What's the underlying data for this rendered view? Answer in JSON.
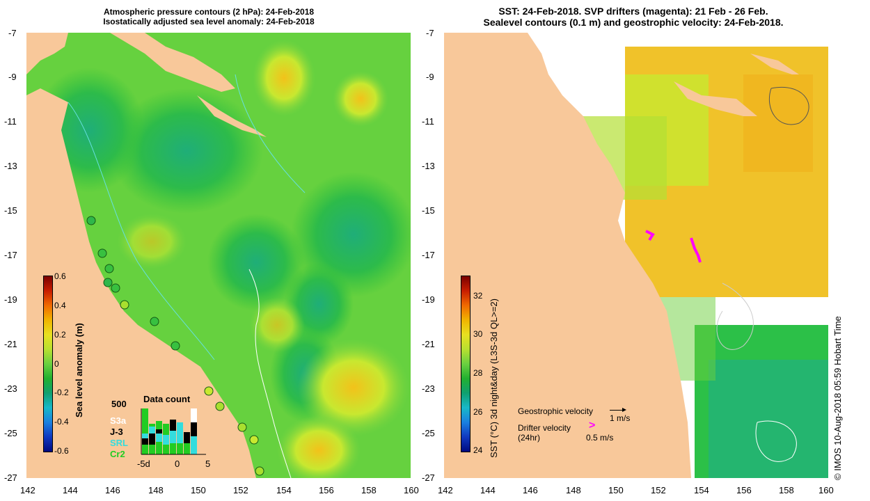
{
  "left_panel": {
    "title_line1": "Atmospheric pressure contours (2 hPa): 24-Feb-2018",
    "title_line2": "Isostatically adjusted sea level anomaly: 24-Feb-2018",
    "y_ticks": [
      "-7",
      "-9",
      "-11",
      "-13",
      "-15",
      "-17",
      "-19",
      "-21",
      "-23",
      "-25",
      "-27"
    ],
    "x_ticks": [
      "142",
      "144",
      "146",
      "148",
      "150",
      "152",
      "154",
      "156",
      "158",
      "160"
    ],
    "colorbar": {
      "label": "Sea level anomaly (m)",
      "ticks": [
        "0.6",
        "0.4",
        "0.2",
        "0",
        "-0.2",
        "-0.4",
        "-0.6"
      ]
    },
    "inset": {
      "title": "Data count",
      "y_label": "500",
      "x_ticks": [
        "-5d",
        "0",
        "5"
      ],
      "legend": [
        "S3a",
        "J-3",
        "SRL",
        "Cr2"
      ],
      "legend_colors": [
        "#ffffff",
        "#000000",
        "#33dddd",
        "#22cc22"
      ]
    }
  },
  "right_panel": {
    "title_line1": "SST: 24-Feb-2018. SVP drifters (magenta): 21 Feb - 26 Feb.",
    "title_line2": "Sealevel contours (0.1 m) and geostrophic velocity: 24-Feb-2018.",
    "y_ticks": [
      "-7",
      "-9",
      "-11",
      "-13",
      "-15",
      "-17",
      "-19",
      "-21",
      "-23",
      "-25",
      "-27"
    ],
    "x_ticks": [
      "142",
      "144",
      "146",
      "148",
      "150",
      "152",
      "154",
      "156",
      "158",
      "160"
    ],
    "colorbar": {
      "label": "SST (°C) 3d night&day (L3S-3d QL>=2)",
      "ticks": [
        "32",
        "30",
        "28",
        "26",
        "24"
      ]
    },
    "geo_velocity_label": "Geostrophic velocity",
    "geo_velocity_scale": "1 m/s",
    "drifter_label": "Drifter velocity",
    "drifter_label2": "(24hr)",
    "drifter_scale": "0.5 m/s",
    "credit": "© IMOS 10-Aug-2018 05:59 Hobart Time"
  },
  "colors": {
    "land": "#f8c89a",
    "drifter": "#ff00ff"
  }
}
